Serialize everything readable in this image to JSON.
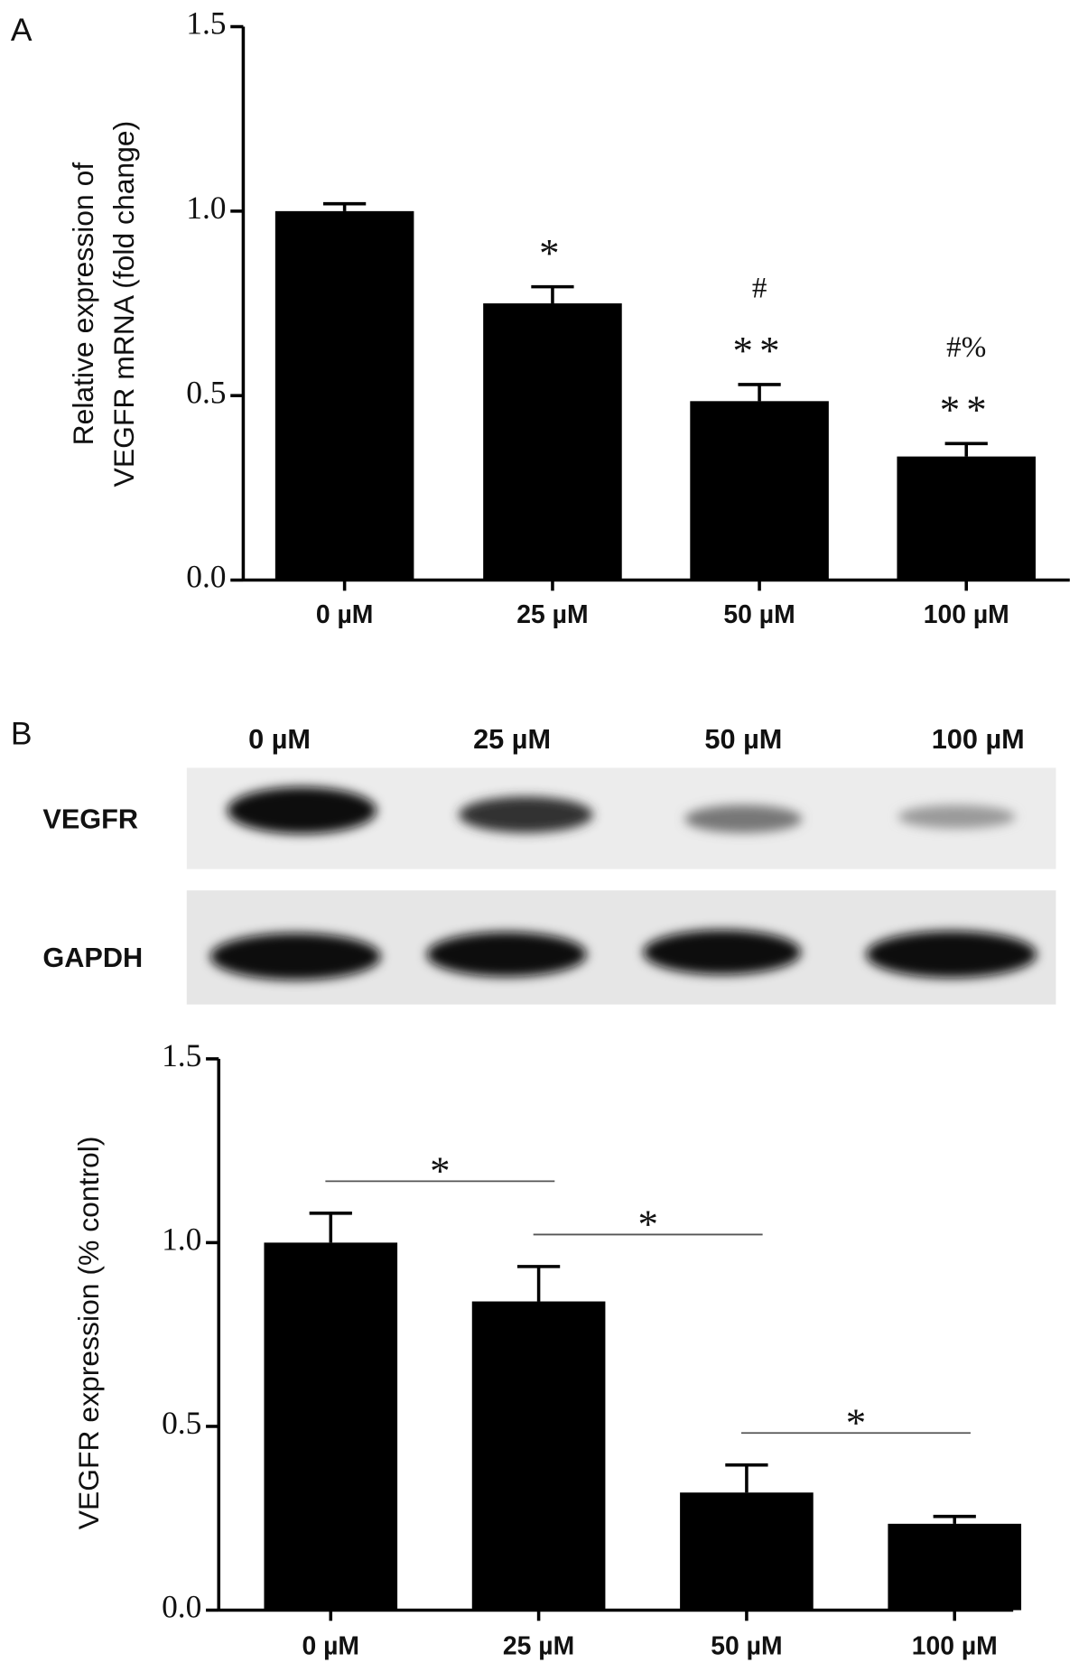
{
  "chart_data": [
    {
      "type": "bar",
      "panel": "A",
      "categories": [
        "0 µM",
        "25 µM",
        "50 µM",
        "100 µM"
      ],
      "values": [
        1.0,
        0.75,
        0.485,
        0.335
      ],
      "errors": [
        0.02,
        0.045,
        0.045,
        0.035
      ],
      "color": "#000000",
      "ylabel": [
        "Relative expression of",
        "VEGFR mRNA (fold change)"
      ],
      "ylim": [
        0,
        1.5
      ],
      "yticks": [
        {
          "value": 0,
          "label": "0.0"
        },
        0.5,
        {
          "value": 1,
          "label": "1.0"
        },
        1.5
      ],
      "annotations": [
        [],
        [
          "*"
        ],
        [
          "**",
          "#"
        ],
        [
          "**",
          "#%"
        ]
      ]
    },
    {
      "type": "bar",
      "categories": [
        "0 µM",
        "25 µM",
        "50 µM",
        "100 µM"
      ],
      "values": [
        1.0,
        0.84,
        0.32,
        0.235
      ],
      "errors": [
        0.08,
        0.095,
        0.075,
        0.02
      ],
      "color": "#000000",
      "ylabel": [
        "VEGFR expression (% control)"
      ],
      "ylim": [
        0,
        1.5
      ],
      "yticks": [
        {
          "value": 0,
          "label": "0.0"
        },
        0.5,
        {
          "value": 1,
          "label": "1.0"
        },
        1.5
      ],
      "brackets": [
        {
          "text": "*",
          "from": 0,
          "to": 1
        },
        {
          "text": "*",
          "from": 1,
          "to": 2
        },
        {
          "text": "*",
          "from": 2,
          "to": 3
        }
      ]
    }
  ],
  "blot": {
    "panel": "B",
    "lanes": [
      "0 µM",
      "25 µM",
      "50 µM",
      "100 µM"
    ],
    "rows": [
      "VEGFR",
      "GAPDH"
    ]
  }
}
